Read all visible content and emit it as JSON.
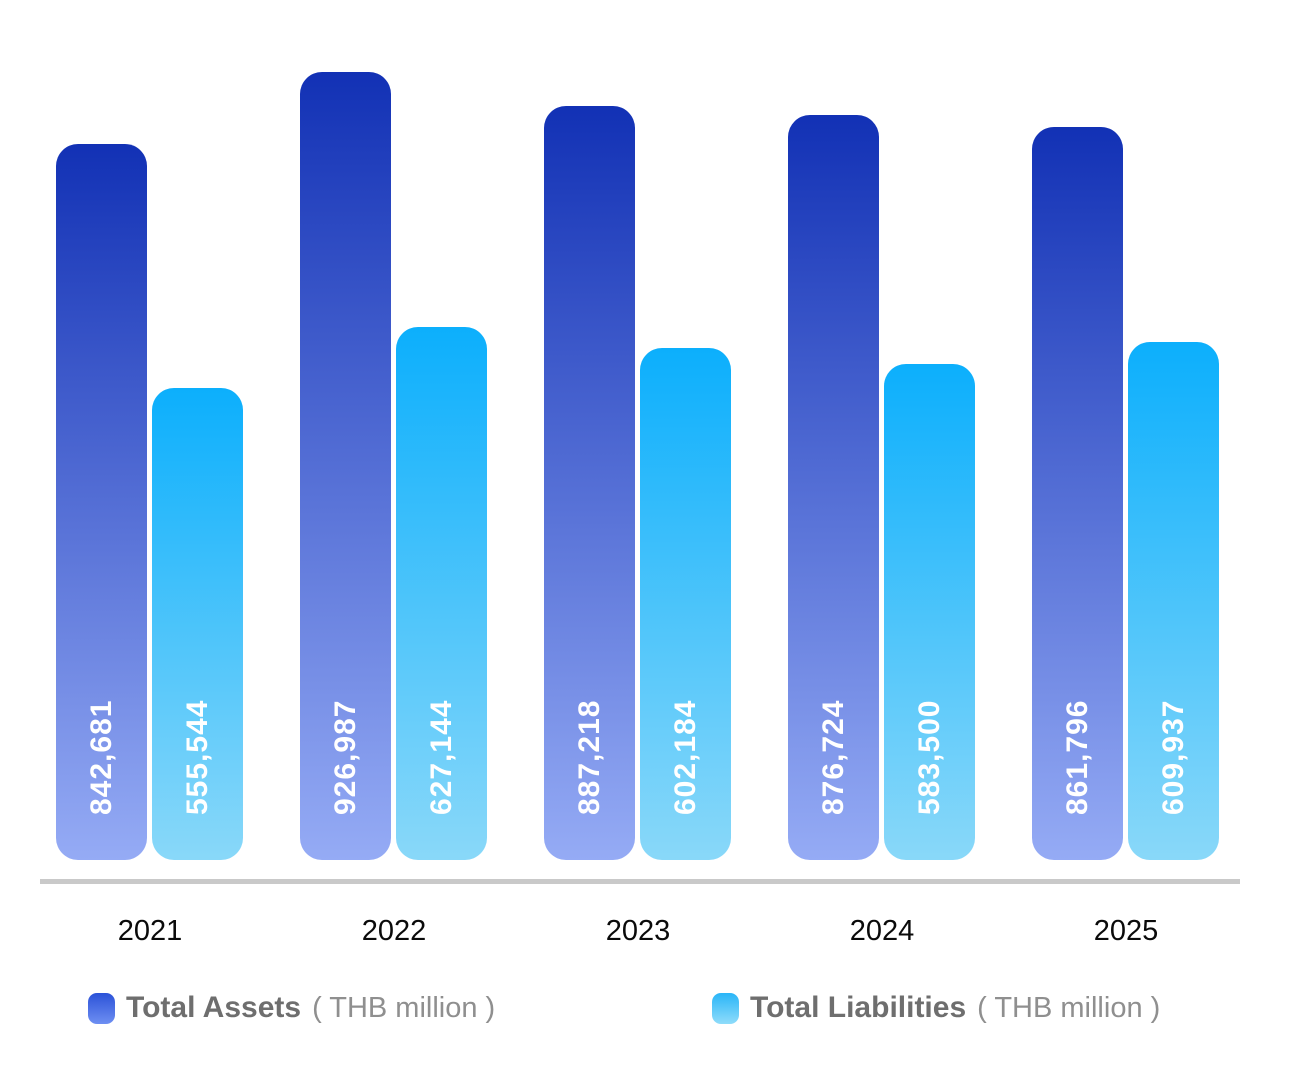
{
  "chart_data": {
    "type": "bar",
    "title": "",
    "xlabel": "",
    "ylabel": "",
    "ylim": [
      0,
      940000
    ],
    "grid": false,
    "legend_position": "bottom",
    "categories": [
      "2021",
      "2022",
      "2023",
      "2024",
      "2025"
    ],
    "series": [
      {
        "name": "Total Assets",
        "unit": "( THB million )",
        "values": [
          842681,
          926987,
          887218,
          876724,
          861796
        ],
        "labels": [
          "842,681",
          "926,987",
          "887,218",
          "876,724",
          "861,796"
        ],
        "bar_color_top": "#1231b5",
        "bar_color_bottom": "#95abf5",
        "swatch_color_top": "#2b52d8",
        "swatch_color_bottom": "#6e8ff2"
      },
      {
        "name": "Total Liabilities",
        "unit": "( THB million )",
        "values": [
          555544,
          627144,
          602184,
          583500,
          609937
        ],
        "labels": [
          "555,544",
          "627,144",
          "602,184",
          "583,500",
          "609,937"
        ],
        "bar_color_top": "#0caffc",
        "bar_color_bottom": "#89d8f9",
        "swatch_color_top": "#29b5f8",
        "swatch_color_bottom": "#8fdcfa"
      }
    ],
    "value_label_color": "#ffffff",
    "axis_line_color": "#c9c9c9",
    "x_label_color": "#0a0a0a"
  }
}
